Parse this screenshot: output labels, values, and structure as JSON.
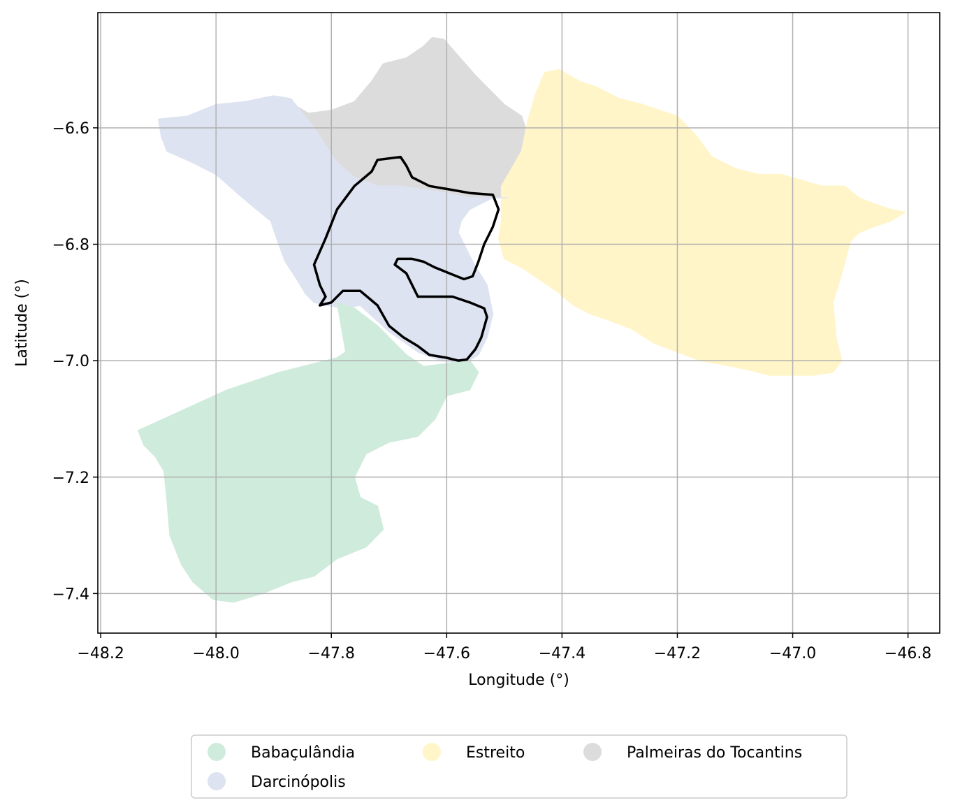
{
  "chart_data": {
    "type": "map",
    "xlabel": "Longitude (°)",
    "ylabel": "Latitude (°)",
    "xlim": [
      -48.205,
      -46.745
    ],
    "ylim": [
      -7.468,
      -6.402
    ],
    "x_ticks": [
      -48.2,
      -48.0,
      -47.8,
      -47.6,
      -47.4,
      -47.2,
      -47.0,
      -46.8
    ],
    "x_tick_labels": [
      "−48.2",
      "−48.0",
      "−47.8",
      "−47.6",
      "−47.4",
      "−47.2",
      "−47.0",
      "−46.8"
    ],
    "y_ticks": [
      -6.6,
      -6.8,
      -7.0,
      -7.2,
      -7.4
    ],
    "y_tick_labels": [
      "−6.6",
      "−6.8",
      "−7.0",
      "−7.2",
      "−7.4"
    ],
    "grid": true,
    "legend_position": "bottom-center, below plot",
    "legend": [
      {
        "label": "Babaçulândia",
        "color": "#cfebdc"
      },
      {
        "label": "Darcinópolis",
        "color": "#dee3f1"
      },
      {
        "label": "Estreito",
        "color": "#fff5c8"
      },
      {
        "label": "Palmeiras do Tocantins",
        "color": "#dcdcdc"
      }
    ],
    "regions": [
      {
        "name": "Palmeiras do Tocantins",
        "color": "#dcdcdc",
        "polygon": [
          [
            -47.865,
            -6.56
          ],
          [
            -47.84,
            -6.575
          ],
          [
            -47.8,
            -6.57
          ],
          [
            -47.76,
            -6.555
          ],
          [
            -47.73,
            -6.52
          ],
          [
            -47.71,
            -6.49
          ],
          [
            -47.67,
            -6.48
          ],
          [
            -47.64,
            -6.46
          ],
          [
            -47.625,
            -6.445
          ],
          [
            -47.605,
            -6.448
          ],
          [
            -47.55,
            -6.51
          ],
          [
            -47.5,
            -6.56
          ],
          [
            -47.47,
            -6.58
          ],
          [
            -47.46,
            -6.61
          ],
          [
            -47.48,
            -6.66
          ],
          [
            -47.495,
            -6.7
          ],
          [
            -47.5,
            -6.72
          ],
          [
            -47.565,
            -6.72
          ],
          [
            -47.61,
            -6.71
          ],
          [
            -47.65,
            -6.705
          ],
          [
            -47.69,
            -6.7
          ],
          [
            -47.73,
            -6.7
          ],
          [
            -47.77,
            -6.68
          ],
          [
            -47.8,
            -6.65
          ],
          [
            -47.825,
            -6.61
          ],
          [
            -47.845,
            -6.59
          ]
        ]
      },
      {
        "name": "Estreito",
        "color": "#fff5c8",
        "polygon": [
          [
            -47.505,
            -6.7
          ],
          [
            -47.47,
            -6.64
          ],
          [
            -47.46,
            -6.59
          ],
          [
            -47.445,
            -6.54
          ],
          [
            -47.43,
            -6.505
          ],
          [
            -47.405,
            -6.5
          ],
          [
            -47.37,
            -6.52
          ],
          [
            -47.34,
            -6.53
          ],
          [
            -47.3,
            -6.55
          ],
          [
            -47.26,
            -6.56
          ],
          [
            -47.23,
            -6.57
          ],
          [
            -47.2,
            -6.58
          ],
          [
            -47.17,
            -6.61
          ],
          [
            -47.14,
            -6.65
          ],
          [
            -47.1,
            -6.67
          ],
          [
            -47.06,
            -6.68
          ],
          [
            -47.02,
            -6.68
          ],
          [
            -46.985,
            -6.69
          ],
          [
            -46.95,
            -6.7
          ],
          [
            -46.91,
            -6.7
          ],
          [
            -46.885,
            -6.72
          ],
          [
            -46.86,
            -6.73
          ],
          [
            -46.83,
            -6.74
          ],
          [
            -46.805,
            -6.745
          ],
          [
            -46.83,
            -6.76
          ],
          [
            -46.86,
            -6.77
          ],
          [
            -46.885,
            -6.78
          ],
          [
            -46.9,
            -6.795
          ],
          [
            -46.915,
            -6.85
          ],
          [
            -46.93,
            -6.9
          ],
          [
            -46.925,
            -6.96
          ],
          [
            -46.915,
            -7.0
          ],
          [
            -46.93,
            -7.02
          ],
          [
            -46.965,
            -7.025
          ],
          [
            -47.0,
            -7.025
          ],
          [
            -47.04,
            -7.025
          ],
          [
            -47.08,
            -7.015
          ],
          [
            -47.13,
            -7.005
          ],
          [
            -47.16,
            -7.0
          ],
          [
            -47.2,
            -6.985
          ],
          [
            -47.24,
            -6.97
          ],
          [
            -47.28,
            -6.945
          ],
          [
            -47.32,
            -6.93
          ],
          [
            -47.35,
            -6.92
          ],
          [
            -47.38,
            -6.905
          ],
          [
            -47.41,
            -6.88
          ],
          [
            -47.44,
            -6.86
          ],
          [
            -47.47,
            -6.84
          ],
          [
            -47.5,
            -6.825
          ],
          [
            -47.51,
            -6.79
          ],
          [
            -47.505,
            -6.76
          ]
        ]
      },
      {
        "name": "Darcinópolis",
        "color": "#dee3f1",
        "polygon": [
          [
            -48.1,
            -6.585
          ],
          [
            -48.095,
            -6.615
          ],
          [
            -48.085,
            -6.64
          ],
          [
            -48.04,
            -6.66
          ],
          [
            -48.0,
            -6.68
          ],
          [
            -47.96,
            -6.715
          ],
          [
            -47.93,
            -6.74
          ],
          [
            -47.905,
            -6.76
          ],
          [
            -47.895,
            -6.79
          ],
          [
            -47.88,
            -6.83
          ],
          [
            -47.86,
            -6.86
          ],
          [
            -47.845,
            -6.885
          ],
          [
            -47.83,
            -6.9
          ],
          [
            -47.78,
            -6.91
          ],
          [
            -47.75,
            -6.905
          ],
          [
            -47.7,
            -6.95
          ],
          [
            -47.65,
            -6.985
          ],
          [
            -47.61,
            -7.0
          ],
          [
            -47.57,
            -7.005
          ],
          [
            -47.545,
            -6.99
          ],
          [
            -47.53,
            -6.96
          ],
          [
            -47.52,
            -6.92
          ],
          [
            -47.53,
            -6.87
          ],
          [
            -47.555,
            -6.83
          ],
          [
            -47.57,
            -6.8
          ],
          [
            -47.58,
            -6.78
          ],
          [
            -47.575,
            -6.76
          ],
          [
            -47.56,
            -6.74
          ],
          [
            -47.52,
            -6.72
          ],
          [
            -47.495,
            -6.72
          ],
          [
            -47.52,
            -6.72
          ],
          [
            -47.56,
            -6.72
          ],
          [
            -47.6,
            -6.712
          ],
          [
            -47.64,
            -6.706
          ],
          [
            -47.68,
            -6.7
          ],
          [
            -47.72,
            -6.7
          ],
          [
            -47.76,
            -6.685
          ],
          [
            -47.79,
            -6.66
          ],
          [
            -47.81,
            -6.63
          ],
          [
            -47.83,
            -6.6
          ],
          [
            -47.85,
            -6.575
          ],
          [
            -47.87,
            -6.55
          ],
          [
            -47.9,
            -6.545
          ],
          [
            -47.95,
            -6.555
          ],
          [
            -48.0,
            -6.56
          ],
          [
            -48.05,
            -6.58
          ]
        ]
      },
      {
        "name": "Babaçulândia",
        "color": "#cfebdc",
        "polygon": [
          [
            -48.135,
            -7.12
          ],
          [
            -47.98,
            -7.05
          ],
          [
            -47.89,
            -7.02
          ],
          [
            -47.79,
            -6.995
          ],
          [
            -47.775,
            -6.985
          ],
          [
            -47.79,
            -6.9
          ],
          [
            -47.76,
            -6.91
          ],
          [
            -47.72,
            -6.94
          ],
          [
            -47.7,
            -6.96
          ],
          [
            -47.67,
            -6.99
          ],
          [
            -47.64,
            -7.01
          ],
          [
            -47.6,
            -7.005
          ],
          [
            -47.56,
            -7.0
          ],
          [
            -47.545,
            -7.02
          ],
          [
            -47.56,
            -7.05
          ],
          [
            -47.6,
            -7.06
          ],
          [
            -47.62,
            -7.1
          ],
          [
            -47.65,
            -7.13
          ],
          [
            -47.7,
            -7.14
          ],
          [
            -47.74,
            -7.16
          ],
          [
            -47.76,
            -7.2
          ],
          [
            -47.75,
            -7.235
          ],
          [
            -47.72,
            -7.25
          ],
          [
            -47.71,
            -7.29
          ],
          [
            -47.74,
            -7.32
          ],
          [
            -47.79,
            -7.34
          ],
          [
            -47.83,
            -7.37
          ],
          [
            -47.87,
            -7.38
          ],
          [
            -47.92,
            -7.4
          ],
          [
            -47.97,
            -7.415
          ],
          [
            -48.005,
            -7.41
          ],
          [
            -48.04,
            -7.38
          ],
          [
            -48.06,
            -7.35
          ],
          [
            -48.08,
            -7.3
          ],
          [
            -48.085,
            -7.24
          ],
          [
            -48.09,
            -7.19
          ],
          [
            -48.105,
            -7.165
          ],
          [
            -48.125,
            -7.145
          ]
        ]
      }
    ],
    "outline": {
      "color": "#000000",
      "polygon": [
        [
          -47.68,
          -6.65
        ],
        [
          -47.72,
          -6.655
        ],
        [
          -47.73,
          -6.675
        ],
        [
          -47.76,
          -6.7
        ],
        [
          -47.79,
          -6.74
        ],
        [
          -47.81,
          -6.79
        ],
        [
          -47.83,
          -6.835
        ],
        [
          -47.82,
          -6.87
        ],
        [
          -47.81,
          -6.89
        ],
        [
          -47.82,
          -6.905
        ],
        [
          -47.8,
          -6.9
        ],
        [
          -47.78,
          -6.88
        ],
        [
          -47.75,
          -6.88
        ],
        [
          -47.72,
          -6.905
        ],
        [
          -47.7,
          -6.94
        ],
        [
          -47.675,
          -6.96
        ],
        [
          -47.65,
          -6.975
        ],
        [
          -47.63,
          -6.99
        ],
        [
          -47.6,
          -6.995
        ],
        [
          -47.58,
          -7.0
        ],
        [
          -47.565,
          -6.998
        ],
        [
          -47.55,
          -6.98
        ],
        [
          -47.54,
          -6.96
        ],
        [
          -47.53,
          -6.925
        ],
        [
          -47.535,
          -6.91
        ],
        [
          -47.56,
          -6.9
        ],
        [
          -47.59,
          -6.89
        ],
        [
          -47.65,
          -6.89
        ],
        [
          -47.67,
          -6.85
        ],
        [
          -47.69,
          -6.835
        ],
        [
          -47.685,
          -6.825
        ],
        [
          -47.66,
          -6.825
        ],
        [
          -47.64,
          -6.83
        ],
        [
          -47.62,
          -6.84
        ],
        [
          -47.595,
          -6.85
        ],
        [
          -47.57,
          -6.86
        ],
        [
          -47.555,
          -6.855
        ],
        [
          -47.545,
          -6.83
        ],
        [
          -47.535,
          -6.8
        ],
        [
          -47.52,
          -6.77
        ],
        [
          -47.51,
          -6.74
        ],
        [
          -47.52,
          -6.715
        ],
        [
          -47.56,
          -6.712
        ],
        [
          -47.6,
          -6.705
        ],
        [
          -47.63,
          -6.7
        ],
        [
          -47.66,
          -6.685
        ],
        [
          -47.67,
          -6.665
        ]
      ]
    }
  }
}
